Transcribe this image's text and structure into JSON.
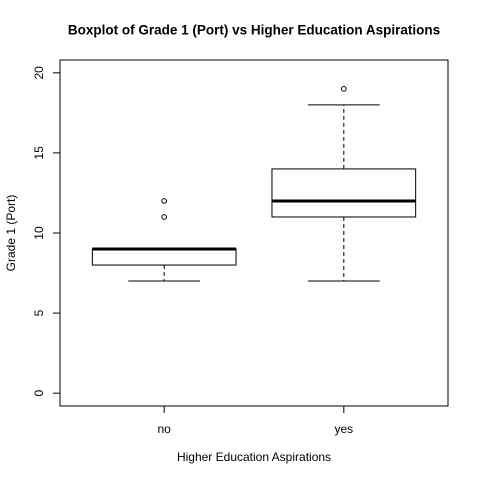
{
  "chart_data": {
    "type": "box",
    "title": "Boxplot of Grade 1 (Port)  vs  Higher Education Aspirations",
    "x_label": "Higher Education Aspirations",
    "y_label": "Grade 1 (Port)",
    "categories": [
      "no",
      "yes"
    ],
    "boxes": [
      {
        "low": 7,
        "q1": 8,
        "median": 9,
        "q3": 9,
        "high": 9,
        "outliers": [
          11,
          12
        ]
      },
      {
        "low": 7,
        "q1": 11,
        "median": 12,
        "q3": 14,
        "high": 18,
        "outliers": [
          19
        ]
      }
    ],
    "color": "#000000",
    "ylim": [
      -0.8,
      20.8
    ],
    "yticks": [
      0,
      5,
      10,
      15,
      20
    ]
  }
}
